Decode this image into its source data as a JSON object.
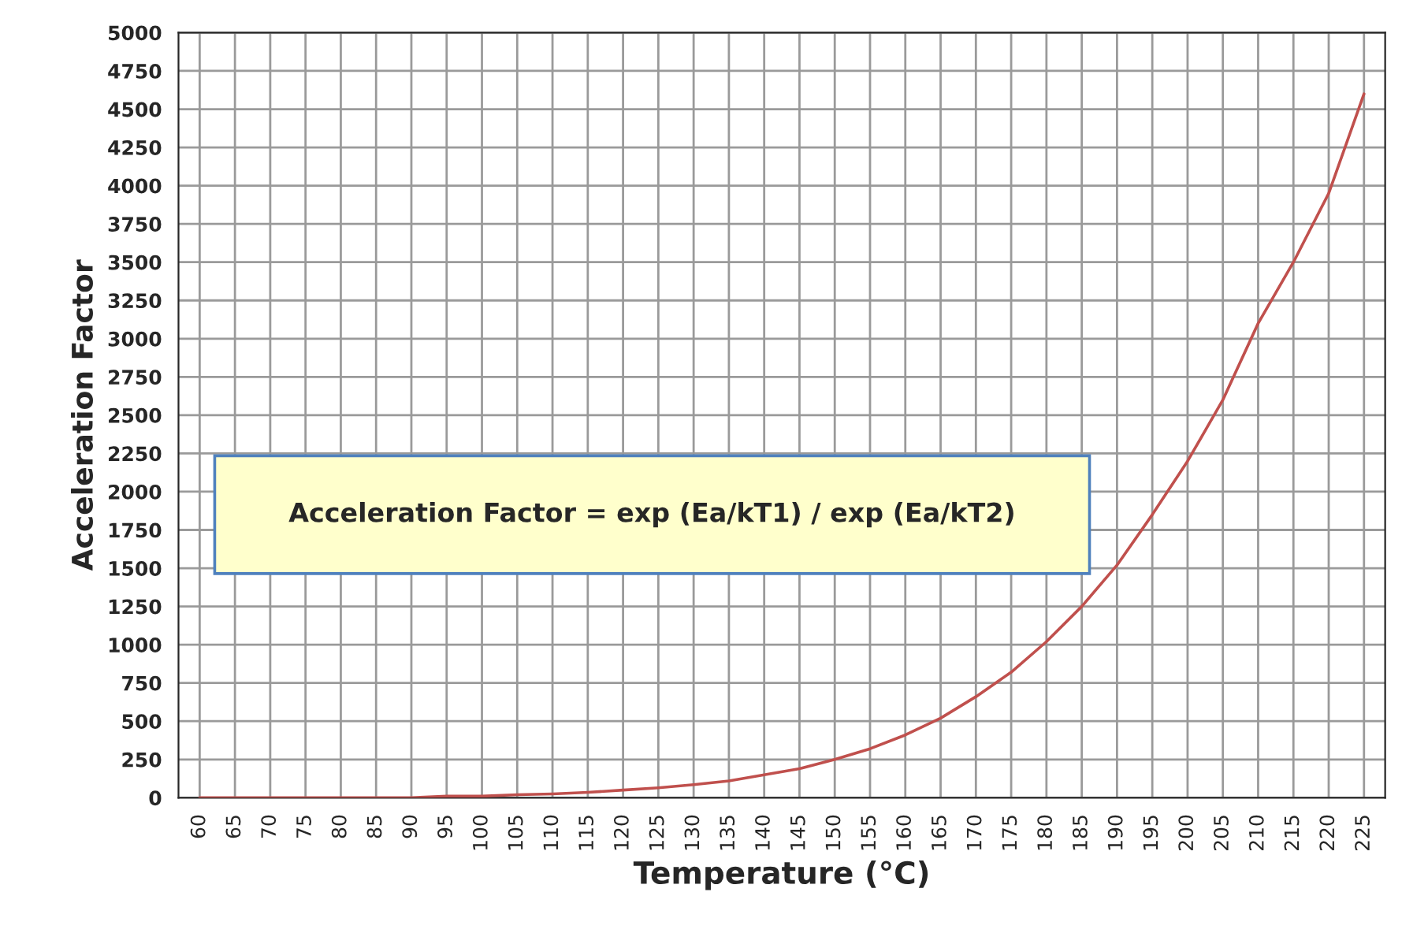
{
  "chart_data": {
    "type": "line",
    "xlabel": "Temperature (°C)",
    "ylabel": "Acceleration Factor",
    "categories": [
      "60",
      "65",
      "70",
      "75",
      "80",
      "85",
      "90",
      "95",
      "100",
      "105",
      "110",
      "115",
      "120",
      "125",
      "130",
      "135",
      "140",
      "145",
      "150",
      "155",
      "160",
      "165",
      "170",
      "175",
      "180",
      "185",
      "190",
      "195",
      "200",
      "205",
      "210",
      "215",
      "220",
      "225"
    ],
    "series": [
      {
        "color": "#c0504d",
        "values": [
          0,
          0,
          0,
          0,
          0,
          0,
          0,
          10,
          10,
          20,
          25,
          35,
          50,
          65,
          85,
          110,
          150,
          190,
          250,
          320,
          410,
          520,
          660,
          820,
          1020,
          1250,
          1520,
          1850,
          2200,
          2600,
          3100,
          3500,
          3950,
          4600
        ]
      }
    ],
    "ylim": [
      0,
      5000
    ],
    "yticks": [
      0,
      250,
      500,
      750,
      1000,
      1250,
      1500,
      1750,
      2000,
      2250,
      2500,
      2750,
      3000,
      3250,
      3500,
      3750,
      4000,
      4250,
      4500,
      4750,
      5000
    ],
    "grid": true,
    "marker": "none",
    "line_style": "solid",
    "legend": false,
    "annotations": [
      "Acceleration Factor = exp (Ea/kT1) / exp (Ea/kT2)"
    ]
  }
}
